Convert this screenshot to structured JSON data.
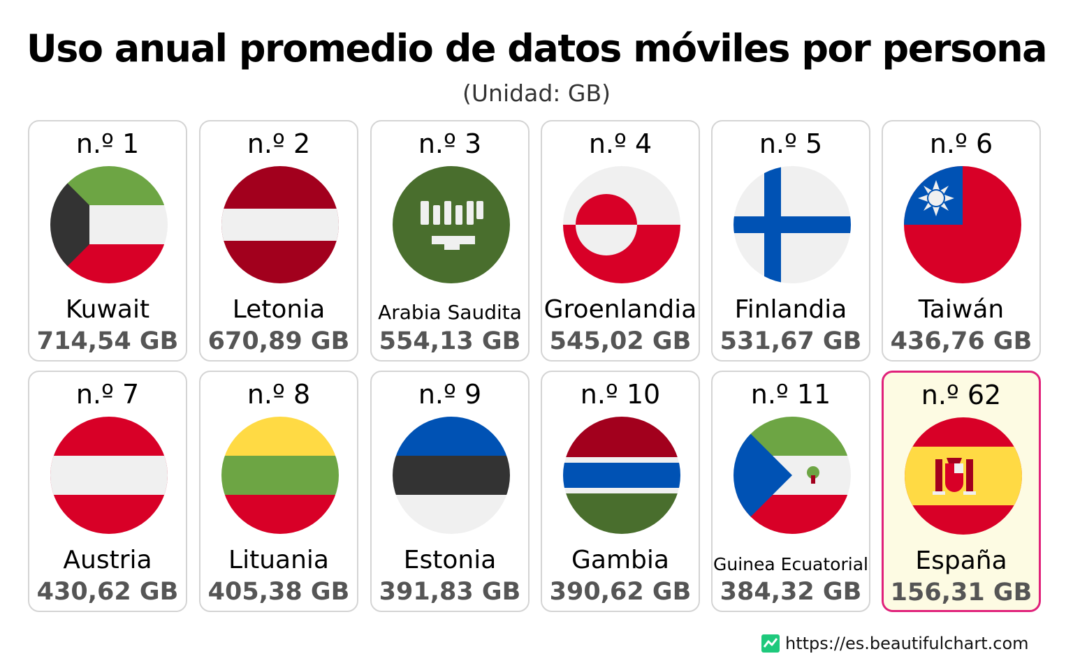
{
  "title": "Uso anual promedio de datos móviles por persona",
  "subtitle": "(Unidad: GB)",
  "source": "https://es.beautifulchart.com",
  "highlight_color": "#e0217a",
  "chart_data": {
    "type": "table",
    "title": "Uso anual promedio de datos móviles por persona",
    "subtitle": "(Unidad: GB)",
    "unit": "GB",
    "items": [
      {
        "rank": "n.º 1",
        "country": "Kuwait",
        "value": 714.54,
        "value_label": "714,54 GB",
        "flag": "kuwait-flag"
      },
      {
        "rank": "n.º 2",
        "country": "Letonia",
        "value": 670.89,
        "value_label": "670,89 GB",
        "flag": "latvia-flag"
      },
      {
        "rank": "n.º 3",
        "country": "Arabia Saudita",
        "value": 554.13,
        "value_label": "554,13 GB",
        "flag": "saudi-arabia-flag"
      },
      {
        "rank": "n.º 4",
        "country": "Groenlandia",
        "value": 545.02,
        "value_label": "545,02 GB",
        "flag": "greenland-flag"
      },
      {
        "rank": "n.º 5",
        "country": "Finlandia",
        "value": 531.67,
        "value_label": "531,67 GB",
        "flag": "finland-flag"
      },
      {
        "rank": "n.º 6",
        "country": "Taiwán",
        "value": 436.76,
        "value_label": "436,76 GB",
        "flag": "taiwan-flag"
      },
      {
        "rank": "n.º 7",
        "country": "Austria",
        "value": 430.62,
        "value_label": "430,62 GB",
        "flag": "austria-flag"
      },
      {
        "rank": "n.º 8",
        "country": "Lituania",
        "value": 405.38,
        "value_label": "405,38 GB",
        "flag": "lithuania-flag"
      },
      {
        "rank": "n.º 9",
        "country": "Estonia",
        "value": 391.83,
        "value_label": "391,83 GB",
        "flag": "estonia-flag"
      },
      {
        "rank": "n.º 10",
        "country": "Gambia",
        "value": 390.62,
        "value_label": "390,62 GB",
        "flag": "gambia-flag"
      },
      {
        "rank": "n.º 11",
        "country": "Guinea Ecuatorial",
        "value": 384.32,
        "value_label": "384,32 GB",
        "flag": "equatorial-guinea-flag"
      },
      {
        "rank": "n.º 62",
        "country": "España",
        "value": 156.31,
        "value_label": "156,31 GB",
        "flag": "spain-flag",
        "highlight": true
      }
    ]
  }
}
